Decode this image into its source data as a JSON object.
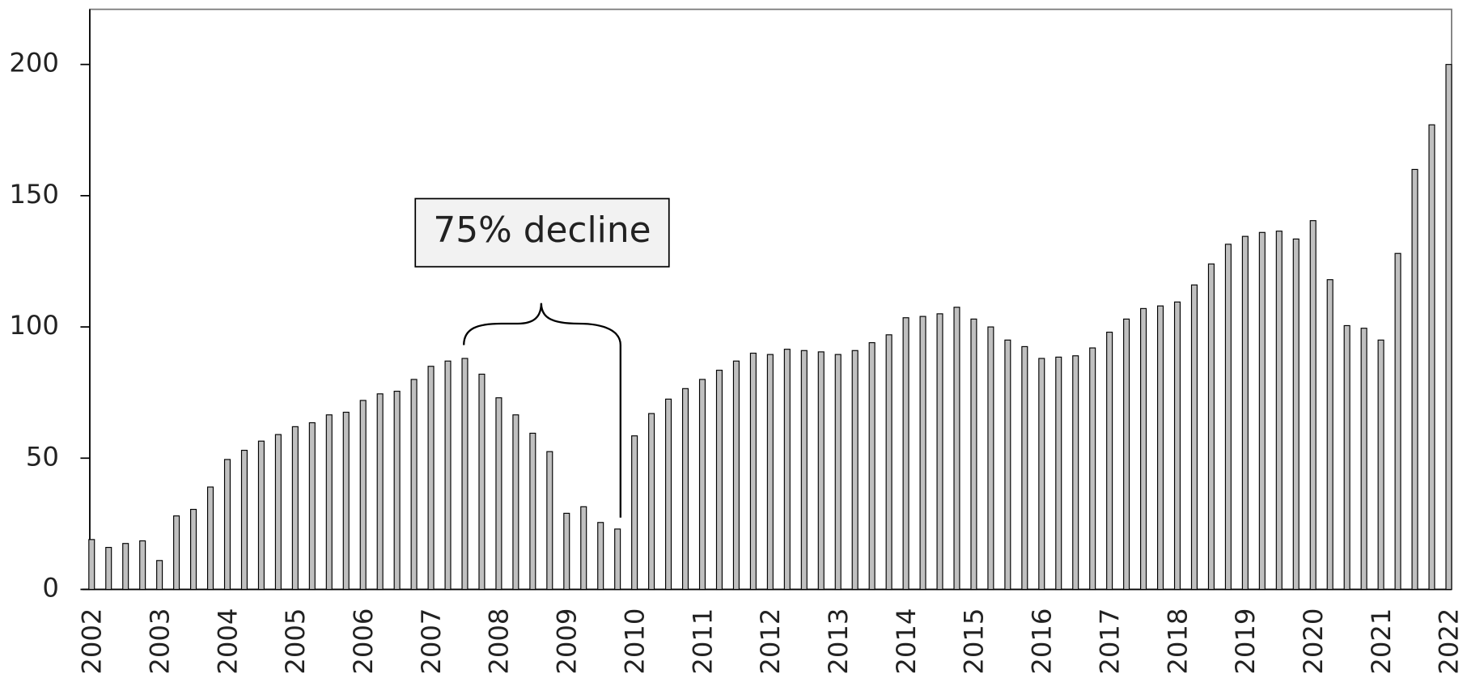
{
  "chart_data": {
    "type": "bar",
    "categories": [
      "2002",
      null,
      null,
      null,
      "2003",
      null,
      null,
      null,
      "2004",
      null,
      null,
      null,
      "2005",
      null,
      null,
      null,
      "2006",
      null,
      null,
      null,
      "2007",
      null,
      null,
      null,
      "2008",
      null,
      null,
      null,
      "2009",
      null,
      null,
      null,
      "2010",
      null,
      null,
      null,
      "2011",
      null,
      null,
      null,
      "2012",
      null,
      null,
      null,
      "2013",
      null,
      null,
      null,
      "2014",
      null,
      null,
      null,
      "2015",
      null,
      null,
      null,
      "2016",
      null,
      null,
      null,
      "2017",
      null,
      null,
      null,
      "2018",
      null,
      null,
      null,
      "2019",
      null,
      null,
      null,
      "2020",
      null,
      null,
      null,
      "2021",
      null,
      null,
      null,
      "2022"
    ],
    "values": [
      19,
      16,
      17.5,
      18.5,
      11,
      28,
      30.5,
      39,
      49.5,
      53,
      56.5,
      59,
      62,
      63.5,
      66.5,
      67.5,
      72,
      74.5,
      75.5,
      80,
      85,
      87,
      88,
      82,
      73,
      66.5,
      59.5,
      52.5,
      29,
      31.5,
      25.5,
      23,
      58.5,
      67,
      72.5,
      76.5,
      80,
      83.5,
      87,
      90,
      89.5,
      91.5,
      91,
      90.5,
      89.5,
      91,
      94,
      97,
      103.5,
      104,
      105,
      107.5,
      103,
      100,
      95,
      92.5,
      88,
      88.5,
      89,
      92,
      98,
      103,
      107,
      108,
      109.5,
      116,
      124,
      131.5,
      134.5,
      136,
      136.5,
      133.5,
      140.5,
      118,
      100.5,
      99.5,
      95,
      128,
      160,
      177,
      200
    ],
    "color": "#c0c0c0",
    "ylim": [
      0,
      221
    ],
    "yticks": [
      0,
      50,
      100,
      150,
      200
    ],
    "annotation": "75% decline"
  }
}
